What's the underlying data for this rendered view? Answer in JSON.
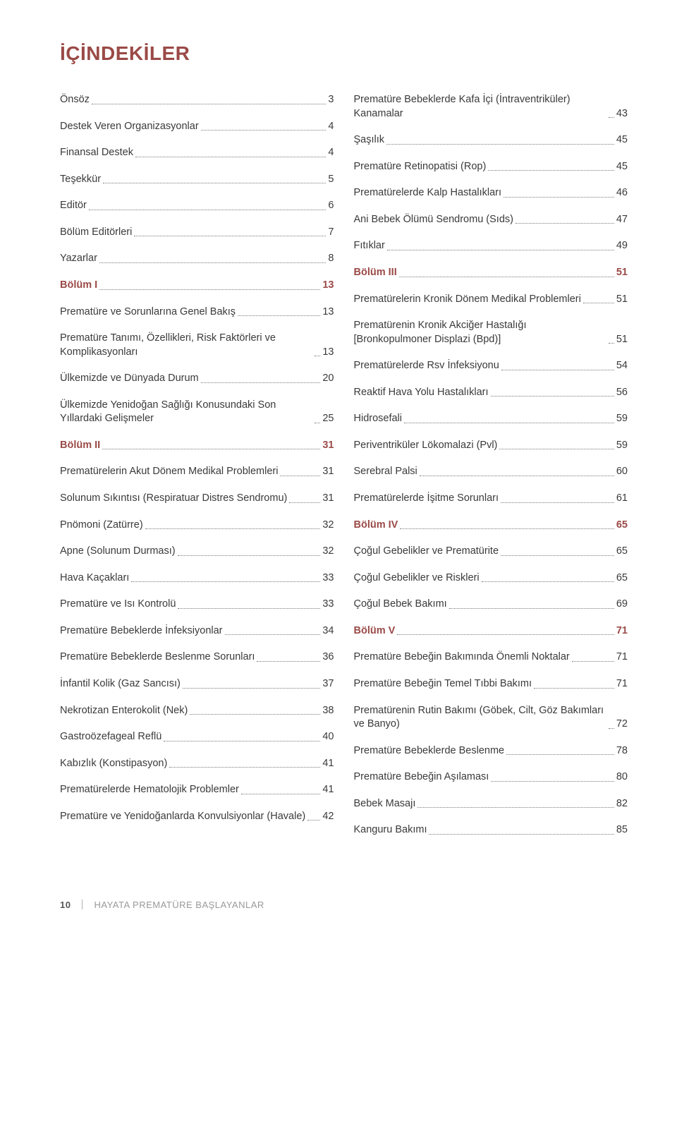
{
  "title_color": "#9a4a47",
  "bold_color": "#9a4a47",
  "text_color": "#3a3a3a",
  "dot_color": "#7a7a7a",
  "background": "#ffffff",
  "title": "İÇİNDEKİLER",
  "left": [
    {
      "label": "Önsöz",
      "page": "3",
      "bold": false
    },
    {
      "label": "Destek Veren Organizasyonlar",
      "page": "4",
      "bold": false
    },
    {
      "label": "Finansal Destek",
      "page": "4",
      "bold": false
    },
    {
      "label": "Teşekkür",
      "page": "5",
      "bold": false
    },
    {
      "label": "Editör",
      "page": "6",
      "bold": false
    },
    {
      "label": "Bölüm Editörleri",
      "page": "7",
      "bold": false
    },
    {
      "label": "Yazarlar",
      "page": "8",
      "bold": false
    },
    {
      "label": "Bölüm I",
      "page": "13",
      "bold": true
    },
    {
      "label": "Prematüre ve Sorunlarına Genel Bakış",
      "page": "13",
      "bold": false
    },
    {
      "label": "Prematüre Tanımı, Özellikleri, Risk Faktörleri ve Komplikasyonları",
      "page": "13",
      "bold": false
    },
    {
      "label": "Ülkemizde ve Dünyada Durum",
      "page": "20",
      "bold": false
    },
    {
      "label": "Ülkemizde Yenidoğan Sağlığı Konusundaki Son Yıllardaki Gelişmeler",
      "page": "25",
      "bold": false
    },
    {
      "label": "Bölüm II",
      "page": "31",
      "bold": true
    },
    {
      "label": "Prematürelerin Akut Dönem Medikal Problemleri",
      "page": "31",
      "bold": false
    },
    {
      "label": "Solunum Sıkıntısı (Respiratuar Distres Sendromu)",
      "page": "31",
      "bold": false
    },
    {
      "label": "Pnömoni (Zatürre)",
      "page": "32",
      "bold": false
    },
    {
      "label": "Apne (Solunum Durması)",
      "page": "32",
      "bold": false
    },
    {
      "label": "Hava Kaçakları",
      "page": "33",
      "bold": false
    },
    {
      "label": "Prematüre ve Isı Kontrolü",
      "page": "33",
      "bold": false
    },
    {
      "label": "Prematüre Bebeklerde İnfeksiyonlar",
      "page": "34",
      "bold": false
    },
    {
      "label": "Prematüre Bebeklerde Beslenme Sorunları",
      "page": "36",
      "bold": false
    },
    {
      "label": "İnfantil Kolik (Gaz Sancısı)",
      "page": "37",
      "bold": false
    },
    {
      "label": "Nekrotizan Enterokolit (Nek)",
      "page": "38",
      "bold": false
    },
    {
      "label": "Gastroözefageal Reflü",
      "page": "40",
      "bold": false
    },
    {
      "label": "Kabızlık (Konstipasyon)",
      "page": "41",
      "bold": false
    },
    {
      "label": "Prematürelerde Hematolojik Problemler",
      "page": "41",
      "bold": false
    },
    {
      "label": "Prematüre ve Yenidoğanlarda Konvulsiyonlar (Havale)",
      "page": "42",
      "bold": false
    }
  ],
  "right": [
    {
      "label": "Prematüre Bebeklerde Kafa İçi (İntraventriküler) Kanamalar",
      "page": "43",
      "bold": false
    },
    {
      "label": "Şaşılık",
      "page": "45",
      "bold": false
    },
    {
      "label": "Prematüre Retinopatisi (Rop)",
      "page": "45",
      "bold": false
    },
    {
      "label": "Prematürelerde Kalp Hastalıkları",
      "page": "46",
      "bold": false
    },
    {
      "label": "Ani Bebek Ölümü Sendromu (Sıds)",
      "page": "47",
      "bold": false
    },
    {
      "label": "Fıtıklar",
      "page": "49",
      "bold": false
    },
    {
      "label": "Bölüm III",
      "page": "51",
      "bold": true
    },
    {
      "label": "Prematürelerin Kronik Dönem Medikal Problemleri",
      "page": "51",
      "bold": false
    },
    {
      "label": "Prematürenin Kronik Akciğer Hastalığı [Bronkopulmoner Displazi (Bpd)]",
      "page": "51",
      "bold": false
    },
    {
      "label": "Prematürelerde Rsv İnfeksiyonu",
      "page": "54",
      "bold": false
    },
    {
      "label": "Reaktif Hava Yolu Hastalıkları",
      "page": "56",
      "bold": false
    },
    {
      "label": "Hidrosefali",
      "page": "59",
      "bold": false
    },
    {
      "label": "Periventriküler Lökomalazi (Pvl)",
      "page": "59",
      "bold": false
    },
    {
      "label": "Serebral Palsi",
      "page": "60",
      "bold": false
    },
    {
      "label": "Prematürelerde İşitme Sorunları",
      "page": "61",
      "bold": false
    },
    {
      "label": "Bölüm IV",
      "page": "65",
      "bold": true
    },
    {
      "label": "Çoğul Gebelikler ve Prematürite",
      "page": "65",
      "bold": false
    },
    {
      "label": "Çoğul Gebelikler ve Riskleri",
      "page": "65",
      "bold": false
    },
    {
      "label": "Çoğul Bebek Bakımı",
      "page": "69",
      "bold": false
    },
    {
      "label": "Bölüm V",
      "page": "71",
      "bold": true
    },
    {
      "label": "Prematüre Bebeğin Bakımında Önemli Noktalar",
      "page": "71",
      "bold": false
    },
    {
      "label": "Prematüre Bebeğin Temel Tıbbi Bakımı",
      "page": "71",
      "bold": false
    },
    {
      "label": "Prematürenin Rutin Bakımı (Göbek, Cilt, Göz Bakımları ve Banyo)",
      "page": "72",
      "bold": false
    },
    {
      "label": "Prematüre Bebeklerde Beslenme",
      "page": "78",
      "bold": false
    },
    {
      "label": "Prematüre Bebeğin Aşılaması",
      "page": "80",
      "bold": false
    },
    {
      "label": "Bebek Masajı",
      "page": "82",
      "bold": false
    },
    {
      "label": "Kanguru Bakımı",
      "page": "85",
      "bold": false
    }
  ],
  "footer": {
    "pagenum": "10",
    "book_title": "HAYATA PREMATÜRE BAŞLAYANLAR"
  }
}
